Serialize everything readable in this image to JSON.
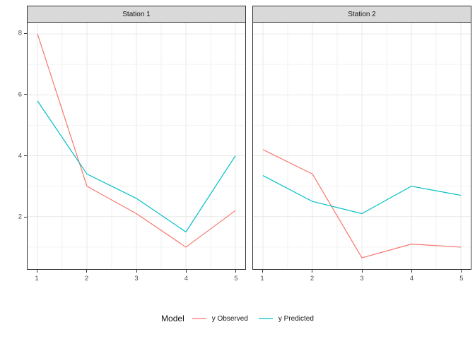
{
  "chart_data": {
    "type": "line",
    "legend_title": "Model",
    "legend_position": "bottom",
    "grid": "on",
    "x_axis": {
      "ticks": [
        1,
        2,
        3,
        4,
        5
      ],
      "minor": [
        1.5,
        2.5,
        3.5,
        4.5
      ],
      "lim": [
        0.8,
        5.2
      ]
    },
    "y_axis": {
      "ticks": [
        2,
        4,
        6,
        8
      ],
      "minor": [
        1,
        3,
        5,
        7
      ],
      "lim": [
        0.28,
        8.37
      ]
    },
    "xlabel": "",
    "ylabel": "",
    "facets": [
      {
        "title": "Station 1",
        "series": [
          {
            "name": "y Observed",
            "color": "#F8766D",
            "x": [
              1,
              2,
              3,
              4,
              5
            ],
            "y": [
              8.0,
              3.0,
              2.1,
              1.0,
              2.2
            ]
          },
          {
            "name": "y Predicted",
            "color": "#00BFC4",
            "x": [
              1,
              2,
              3,
              4,
              5
            ],
            "y": [
              5.8,
              3.4,
              2.6,
              1.5,
              4.0
            ]
          }
        ]
      },
      {
        "title": "Station 2",
        "series": [
          {
            "name": "y Observed",
            "color": "#F8766D",
            "x": [
              1,
              2,
              3,
              4,
              5
            ],
            "y": [
              4.2,
              3.4,
              0.65,
              1.1,
              1.0
            ]
          },
          {
            "name": "y Predicted",
            "color": "#00BFC4",
            "x": [
              1,
              2,
              3,
              4,
              5
            ],
            "y": [
              3.35,
              2.5,
              2.1,
              3.0,
              2.7
            ]
          }
        ]
      }
    ]
  }
}
